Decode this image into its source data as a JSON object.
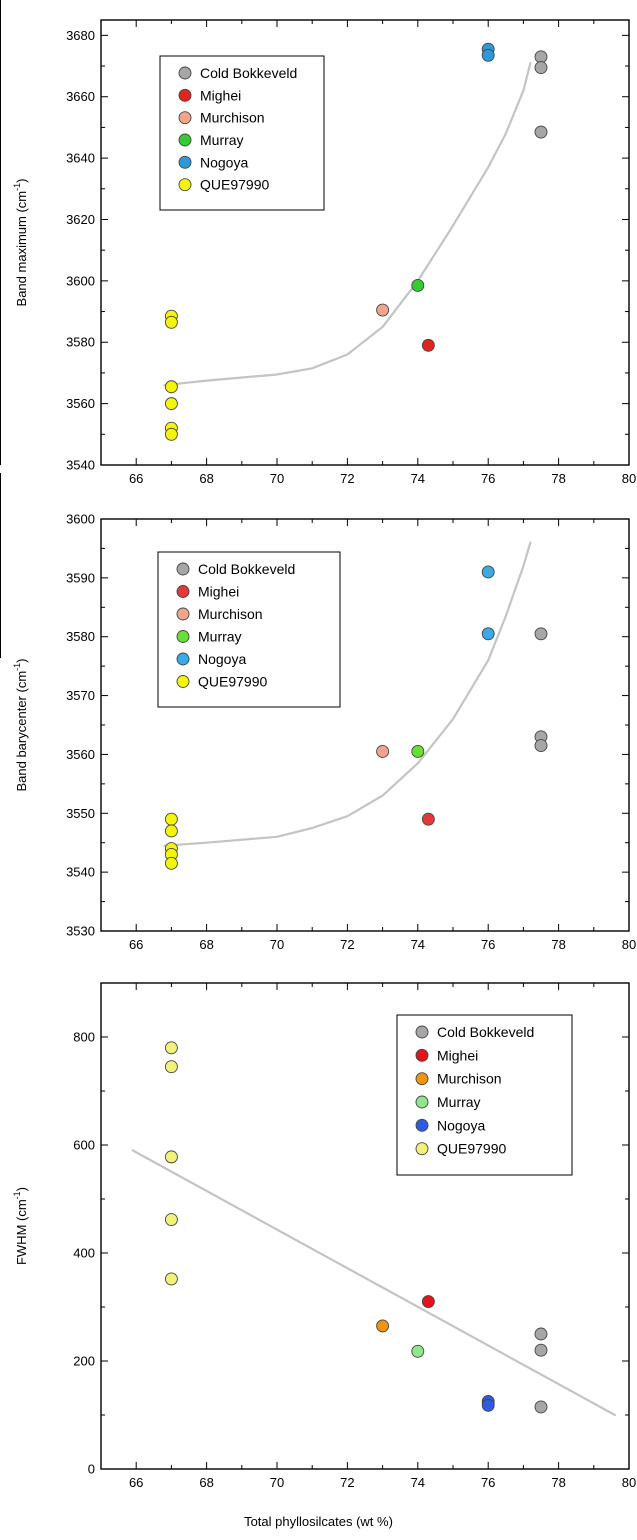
{
  "chart_data": [
    {
      "type": "scatter",
      "ylabel": "Band maximum (cm",
      "ylabel_sup": "-1",
      "ylabel_close": ")",
      "xlim": [
        65,
        80
      ],
      "ylim": [
        3540,
        3685
      ],
      "xticks": [
        "66",
        "68",
        "70",
        "72",
        "74",
        "76",
        "78",
        "80"
      ],
      "yticks": [
        "3540",
        "3560",
        "3580",
        "3600",
        "3620",
        "3640",
        "3660",
        "3680"
      ],
      "legend_position": "top-left",
      "series": [
        {
          "name": "Cold Bokkeveld",
          "color": "#a6a6a6",
          "points": [
            [
              77.5,
              3673
            ],
            [
              77.5,
              3669.5
            ],
            [
              77.5,
              3648.5
            ]
          ]
        },
        {
          "name": "Mighei",
          "color": "#e0251c",
          "points": [
            [
              74.3,
              3579
            ]
          ]
        },
        {
          "name": "Murchison",
          "color": "#f2a58a",
          "points": [
            [
              73.0,
              3590.5
            ]
          ]
        },
        {
          "name": "Murray",
          "color": "#33cc33",
          "points": [
            [
              74.0,
              3598.5
            ]
          ]
        },
        {
          "name": "Nogoya",
          "color": "#2f97dc",
          "points": [
            [
              76.0,
              3675.5
            ],
            [
              76.0,
              3673.5
            ]
          ]
        },
        {
          "name": "QUE97990",
          "color": "#f5f50a",
          "points": [
            [
              67.0,
              3588.5
            ],
            [
              67.0,
              3586.5
            ],
            [
              67.0,
              3565.5
            ],
            [
              67.0,
              3560
            ],
            [
              67.0,
              3552
            ],
            [
              67.0,
              3550
            ]
          ]
        }
      ],
      "trend": {
        "points": [
          [
            66.8,
            3566
          ],
          [
            68,
            3567.5
          ],
          [
            70,
            3569.5
          ],
          [
            71,
            3571.5
          ],
          [
            72,
            3576
          ],
          [
            73,
            3585
          ],
          [
            74,
            3600
          ],
          [
            75,
            3618
          ],
          [
            76,
            3637
          ],
          [
            76.5,
            3648
          ],
          [
            77.0,
            3662
          ],
          [
            77.2,
            3671
          ]
        ]
      }
    },
    {
      "type": "scatter",
      "ylabel": "Band barycenter (cm",
      "ylabel_sup": "-1",
      "ylabel_close": ")",
      "xlim": [
        65,
        80
      ],
      "ylim": [
        3530,
        3600
      ],
      "xticks": [
        "66",
        "68",
        "70",
        "72",
        "74",
        "76",
        "78",
        "80"
      ],
      "yticks": [
        "3530",
        "3540",
        "3550",
        "3560",
        "3570",
        "3580",
        "3590",
        "3600"
      ],
      "legend_position": "top-left",
      "series": [
        {
          "name": "Cold Bokkeveld",
          "color": "#a6a6a6",
          "points": [
            [
              77.5,
              3580.5
            ],
            [
              77.5,
              3563
            ],
            [
              77.5,
              3561.5
            ]
          ]
        },
        {
          "name": "Mighei",
          "color": "#e23a3a",
          "points": [
            [
              74.3,
              3549
            ]
          ]
        },
        {
          "name": "Murchison",
          "color": "#f2a58a",
          "points": [
            [
              73.0,
              3560.5
            ]
          ]
        },
        {
          "name": "Murray",
          "color": "#66e033",
          "points": [
            [
              74.0,
              3560.5
            ]
          ]
        },
        {
          "name": "Nogoya",
          "color": "#3aa9e6",
          "points": [
            [
              76.0,
              3591
            ],
            [
              76.0,
              3580.5
            ]
          ]
        },
        {
          "name": "QUE97990",
          "color": "#f5f50a",
          "points": [
            [
              67.0,
              3549
            ],
            [
              67.0,
              3547
            ],
            [
              67.0,
              3544
            ],
            [
              67.0,
              3543
            ],
            [
              67.0,
              3541.5
            ]
          ]
        }
      ],
      "trend": {
        "points": [
          [
            66.8,
            3544.5
          ],
          [
            68,
            3545
          ],
          [
            70,
            3546
          ],
          [
            71,
            3547.5
          ],
          [
            72,
            3549.5
          ],
          [
            73,
            3553
          ],
          [
            74,
            3558.5
          ],
          [
            75,
            3566
          ],
          [
            76,
            3576
          ],
          [
            76.5,
            3583.5
          ],
          [
            77.0,
            3592
          ],
          [
            77.2,
            3596
          ]
        ]
      }
    },
    {
      "type": "scatter",
      "ylabel": "FWHM (cm",
      "ylabel_sup": "-1",
      "ylabel_close": ")",
      "xlim": [
        65,
        80
      ],
      "ylim": [
        0,
        900
      ],
      "xticks": [
        "66",
        "68",
        "70",
        "72",
        "74",
        "76",
        "78",
        "80"
      ],
      "yticks": [
        "0",
        "200",
        "400",
        "600",
        "800"
      ],
      "xlabel": "Total phyllosilcates (wt %)",
      "legend_position": "top-right",
      "series": [
        {
          "name": "Cold Bokkeveld",
          "color": "#a6a6a6",
          "points": [
            [
              77.5,
              250
            ],
            [
              77.5,
              220
            ],
            [
              77.5,
              115
            ]
          ]
        },
        {
          "name": "Mighei",
          "color": "#e0151c",
          "points": [
            [
              74.3,
              310
            ]
          ]
        },
        {
          "name": "Murchison",
          "color": "#f0940e",
          "points": [
            [
              73.0,
              265
            ]
          ]
        },
        {
          "name": "Murray",
          "color": "#8ee68e",
          "points": [
            [
              74.0,
              218
            ]
          ]
        },
        {
          "name": "Nogoya",
          "color": "#2f5be0",
          "points": [
            [
              76.0,
              125
            ],
            [
              76.0,
              118
            ]
          ]
        },
        {
          "name": "QUE97990",
          "color": "#f2f27a",
          "points": [
            [
              67.0,
              780
            ],
            [
              67.0,
              745
            ],
            [
              67.0,
              578
            ],
            [
              67.0,
              462
            ],
            [
              67.0,
              352
            ]
          ]
        }
      ],
      "trend": {
        "points": [
          [
            65.9,
            590
          ],
          [
            79.6,
            100
          ]
        ]
      }
    }
  ]
}
